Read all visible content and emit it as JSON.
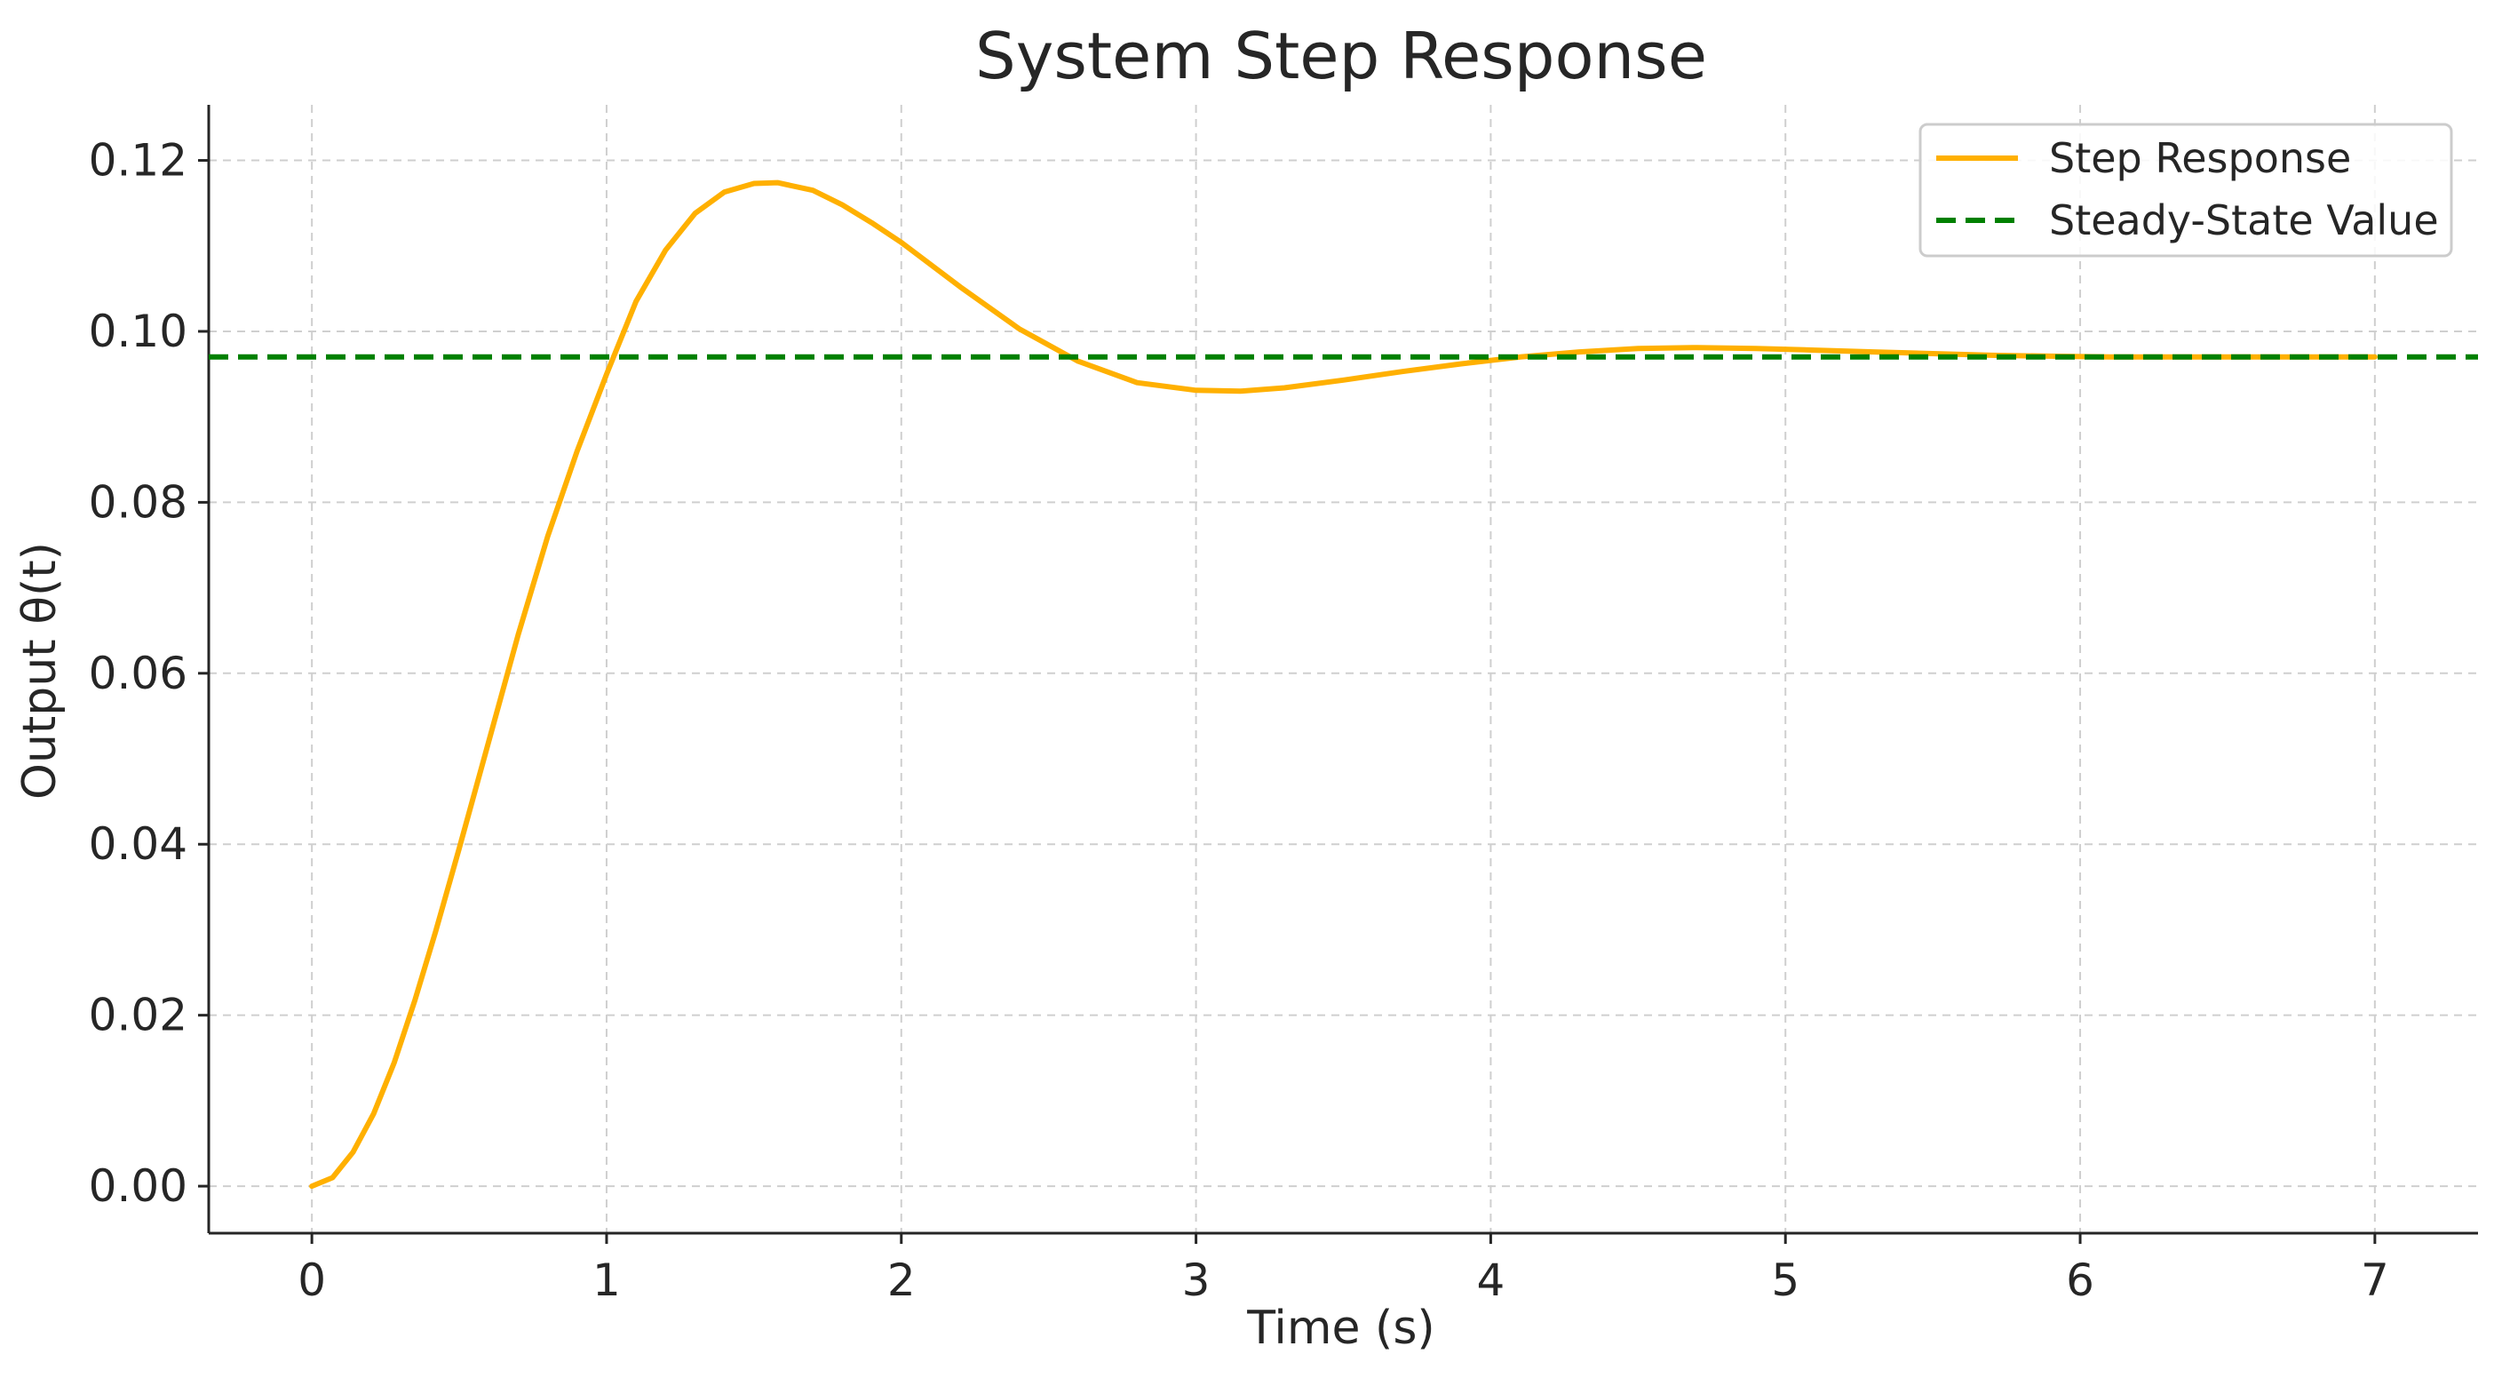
{
  "chart_data": {
    "type": "line",
    "title": "System Step Response",
    "xlabel": "Time (s)",
    "ylabel": "Output θ(t)",
    "xlim": [
      -0.35,
      7.35
    ],
    "ylim": [
      -0.0055,
      0.1265
    ],
    "xticks": [
      0,
      1,
      2,
      3,
      4,
      5,
      6,
      7
    ],
    "xtick_labels": [
      "0",
      "1",
      "2",
      "3",
      "4",
      "5",
      "6",
      "7"
    ],
    "yticks": [
      0.0,
      0.02,
      0.04,
      0.06,
      0.08,
      0.1,
      0.12
    ],
    "ytick_labels": [
      "0.00",
      "0.02",
      "0.04",
      "0.06",
      "0.08",
      "0.10",
      "0.12"
    ],
    "grid": true,
    "legend_position": "top-right",
    "series": [
      {
        "name": "Step Response",
        "style": "solid",
        "color": "#FFB000",
        "x": [
          0,
          0.07,
          0.14,
          0.21,
          0.28,
          0.35,
          0.42,
          0.5,
          0.6,
          0.7,
          0.8,
          0.9,
          1.0,
          1.1,
          1.2,
          1.3,
          1.4,
          1.5,
          1.58,
          1.7,
          1.8,
          1.9,
          2.0,
          2.2,
          2.4,
          2.6,
          2.8,
          3.0,
          3.15,
          3.3,
          3.5,
          3.7,
          3.9,
          4.1,
          4.3,
          4.5,
          4.7,
          4.9,
          5.1,
          5.3,
          5.5,
          5.7,
          5.9,
          6.1,
          6.3,
          6.5,
          6.7,
          7.0
        ],
        "y": [
          0.0,
          0.001,
          0.004,
          0.0085,
          0.0145,
          0.0218,
          0.0298,
          0.0395,
          0.052,
          0.0645,
          0.076,
          0.086,
          0.095,
          0.1035,
          0.1095,
          0.1138,
          0.1163,
          0.1173,
          0.1174,
          0.1165,
          0.1148,
          0.1127,
          0.1104,
          0.1052,
          0.1003,
          0.0965,
          0.094,
          0.0931,
          0.093,
          0.0934,
          0.0943,
          0.0953,
          0.0962,
          0.097,
          0.0976,
          0.098,
          0.0981,
          0.098,
          0.0978,
          0.0976,
          0.0974,
          0.0972,
          0.0971,
          0.097,
          0.097,
          0.097,
          0.097,
          0.097
        ]
      },
      {
        "name": "Steady-State Value",
        "style": "dashed",
        "color": "#008000",
        "x": [
          -0.35,
          7.35
        ],
        "y": [
          0.097,
          0.097
        ]
      }
    ]
  }
}
